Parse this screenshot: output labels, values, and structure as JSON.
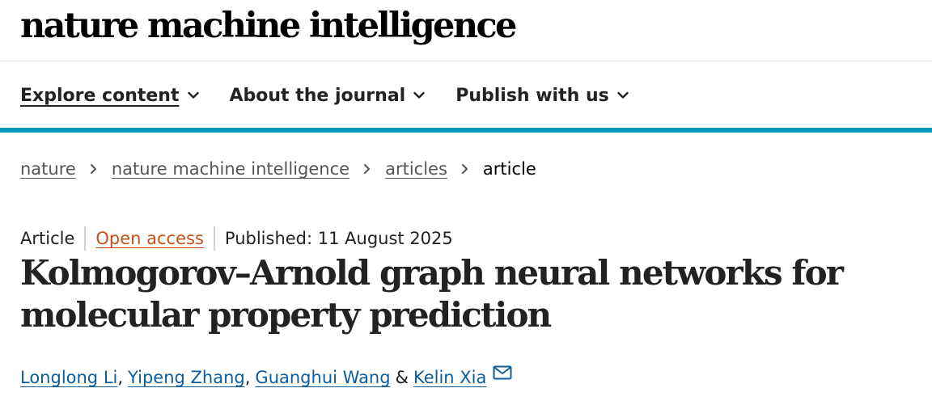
{
  "header": {
    "logo_text": "nature machine intelligence"
  },
  "nav": {
    "items": [
      {
        "label": "Explore content",
        "active": true
      },
      {
        "label": "About the journal",
        "active": false
      },
      {
        "label": "Publish with us",
        "active": false
      }
    ]
  },
  "breadcrumb": {
    "items": [
      "nature",
      "nature machine intelligence",
      "articles"
    ],
    "current": "article"
  },
  "article": {
    "type": "Article",
    "access": "Open access",
    "published": "Published: 11 August 2025",
    "title": "Kolmogorov–Arnold graph neural networks for molecular property prediction",
    "authors": [
      "Longlong Li",
      "Yipeng Zhang",
      "Guanghui Wang",
      "Kelin Xia"
    ],
    "author_separators": [
      ", ",
      ", ",
      " & "
    ]
  },
  "colors": {
    "accent_bar": "#0099bb",
    "open_access": "#c4501a",
    "author_link": "#0b5d9c"
  },
  "icons": {
    "nav_chevron": "chevron-down-icon",
    "breadcrumb_separator": "chevron-right-icon",
    "corresponding_author": "mail-icon"
  }
}
